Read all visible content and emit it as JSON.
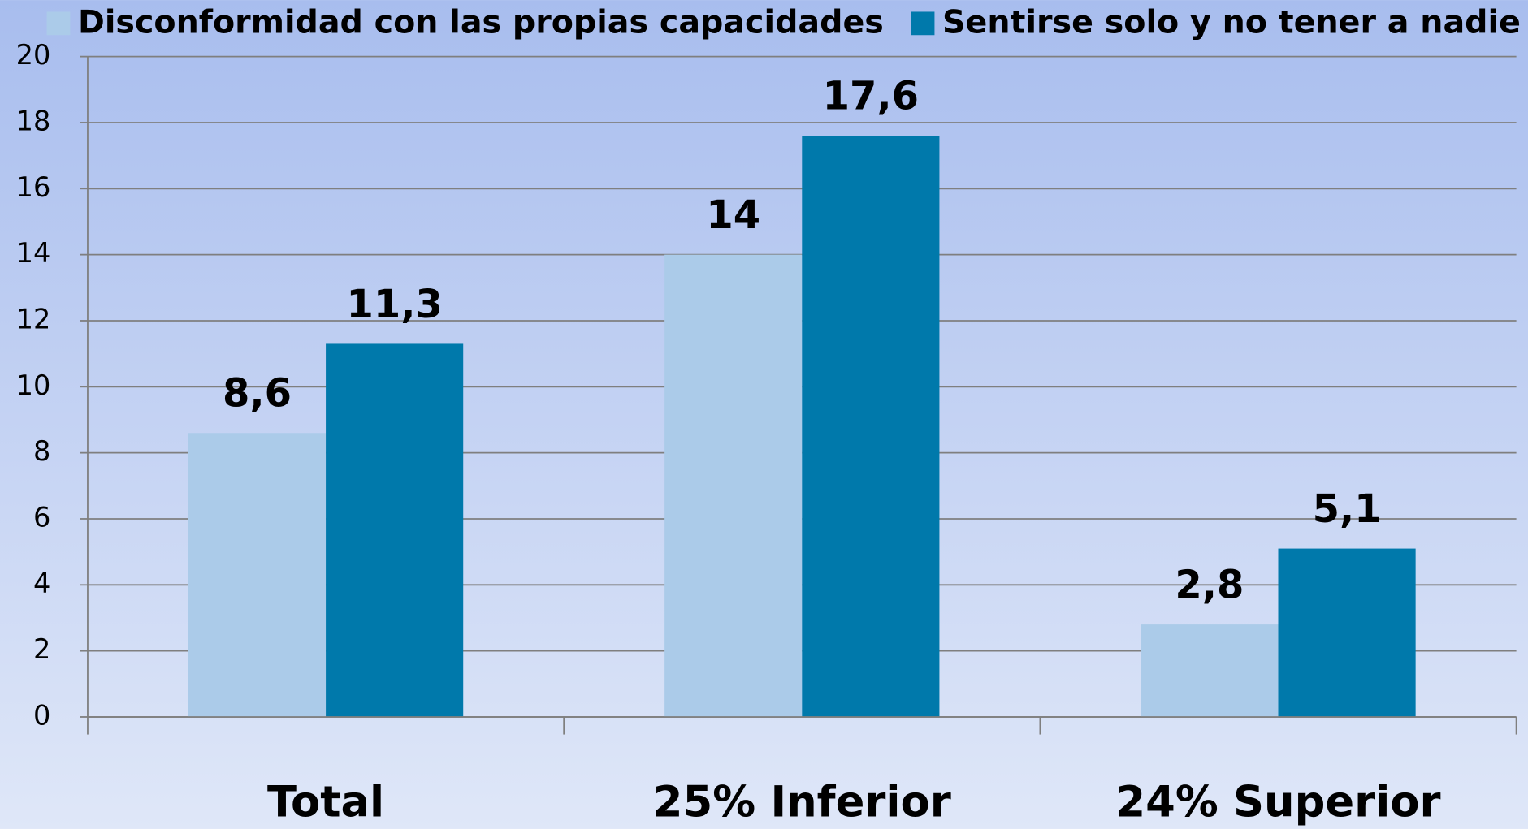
{
  "chart_data": {
    "type": "bar",
    "categories": [
      "Total",
      "25% Inferior",
      "24% Superior"
    ],
    "series": [
      {
        "name": "Disconformidad con las propias capacidades",
        "color": "#abcbe9",
        "values": [
          8.6,
          14,
          2.8
        ],
        "value_labels": [
          "8,6",
          "14",
          "2,8"
        ]
      },
      {
        "name": "Sentirse solo y no tener a nadie",
        "color": "#0079ab",
        "values": [
          11.3,
          17.6,
          5.1
        ],
        "value_labels": [
          "11,3",
          "17,6",
          "5,1"
        ]
      }
    ],
    "ylim": [
      0,
      20
    ],
    "yticks": [
      0,
      2,
      4,
      6,
      8,
      10,
      12,
      14,
      16,
      18,
      20
    ],
    "grid": true,
    "legend": "top"
  }
}
